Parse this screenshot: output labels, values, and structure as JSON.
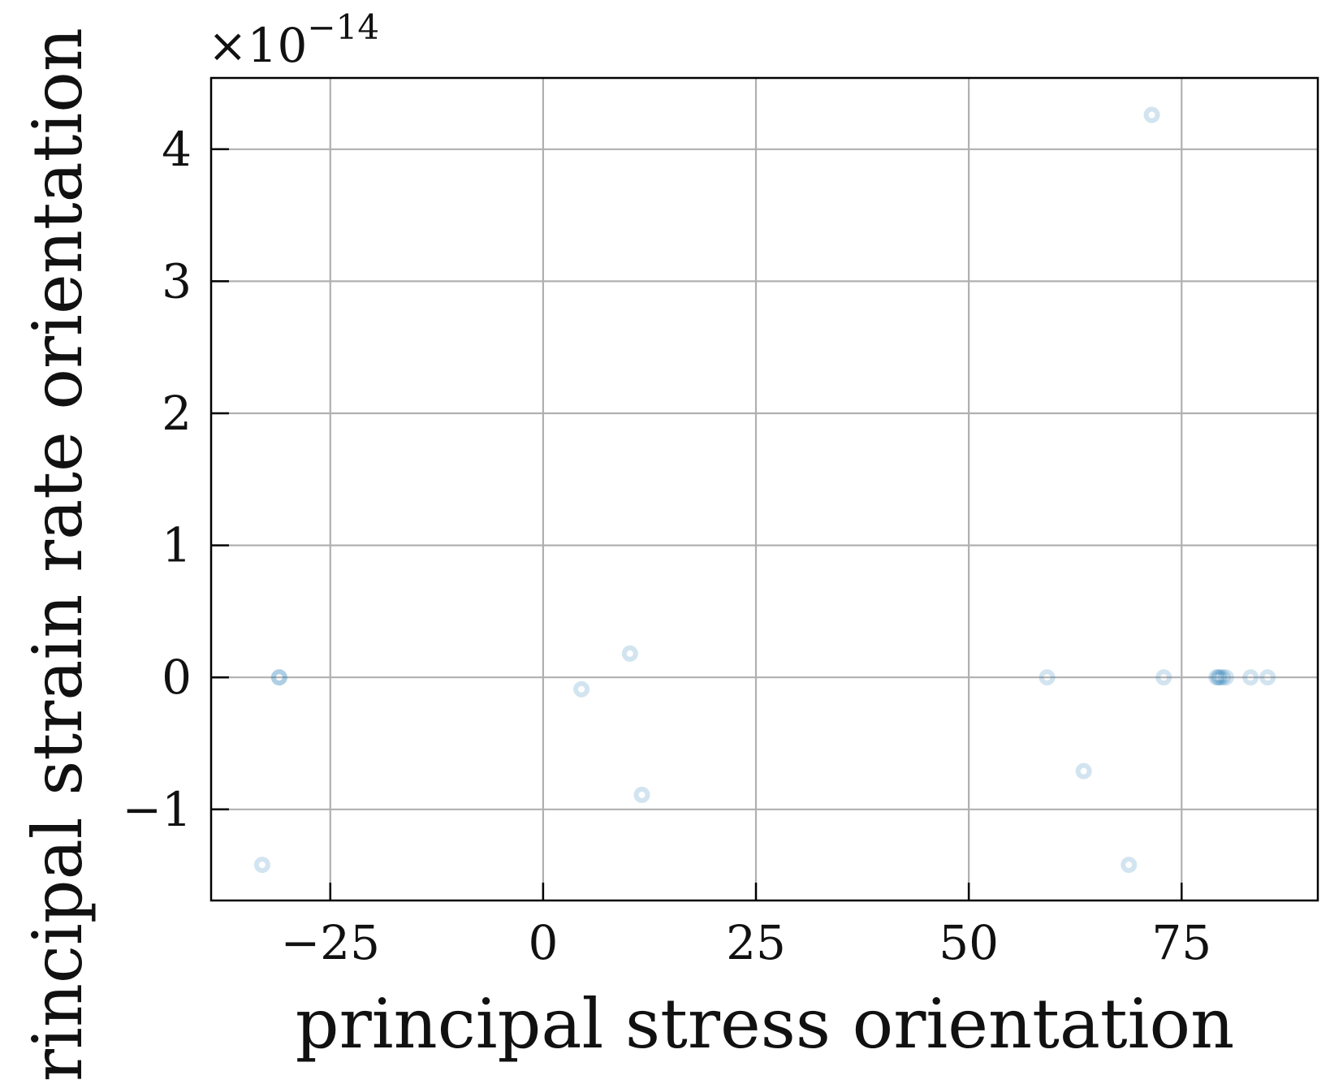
{
  "chart_data": {
    "type": "scatter",
    "title": "",
    "xlabel": "principal stress orientation",
    "ylabel": "principal strain rate orientation",
    "y_offset_label": {
      "prefix": "×10",
      "exponent": "−14"
    },
    "xlim": [
      -39,
      91
    ],
    "ylim": [
      -1.69,
      4.54
    ],
    "x_ticks": [
      {
        "value": -25,
        "label": "−25"
      },
      {
        "value": 0,
        "label": "0"
      },
      {
        "value": 25,
        "label": "25"
      },
      {
        "value": 50,
        "label": "50"
      },
      {
        "value": 75,
        "label": "75"
      }
    ],
    "y_ticks": [
      {
        "value": -1,
        "label": "−1"
      },
      {
        "value": 0,
        "label": "0"
      },
      {
        "value": 1,
        "label": "1"
      },
      {
        "value": 2,
        "label": "2"
      },
      {
        "value": 3,
        "label": "3"
      },
      {
        "value": 4,
        "label": "4"
      }
    ],
    "grid": true,
    "legend": "none",
    "marker_color": "#1f77b4",
    "marker_alpha": 0.2,
    "x": [
      -33,
      -31,
      -31,
      4.5,
      10.2,
      11.6,
      59.2,
      63.5,
      68.8,
      71.5,
      72.9,
      79.1,
      79.3,
      79.5,
      79.8,
      80.2,
      83.1,
      85.1
    ],
    "y": [
      -1.42,
      0.0,
      0.0,
      -0.09,
      0.18,
      -0.89,
      0.0,
      -0.71,
      -1.42,
      4.26,
      0.0,
      0.0,
      0.0,
      0.0,
      0.0,
      0.0,
      0.0,
      0.0
    ]
  }
}
